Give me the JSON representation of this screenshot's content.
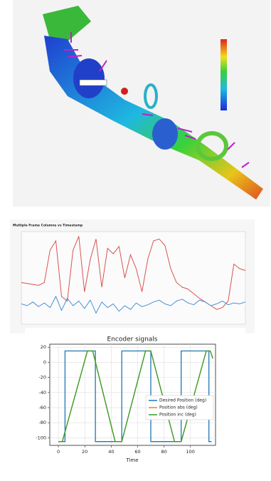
{
  "chart_data": [
    {
      "type": "line",
      "title": "Multiple Frame Columns vs Timestamp",
      "ylim": [
        0,
        100
      ],
      "series": [
        {
          "color": "#d9534f",
          "values": [
            45,
            44,
            43,
            42,
            45,
            80,
            90,
            30,
            25,
            80,
            95,
            35,
            70,
            92,
            40,
            82,
            76,
            84,
            50,
            75,
            60,
            35,
            70,
            90,
            92,
            85,
            60,
            45,
            40,
            38,
            33,
            28,
            24,
            20,
            16,
            18,
            25,
            65,
            60,
            58
          ]
        },
        {
          "color": "#4a90d9",
          "values": [
            22,
            20,
            24,
            19,
            23,
            18,
            30,
            15,
            28,
            20,
            25,
            17,
            26,
            12,
            24,
            18,
            22,
            14,
            20,
            16,
            23,
            19,
            21,
            24,
            26,
            22,
            20,
            25,
            27,
            23,
            21,
            26,
            24,
            20,
            22,
            25,
            21,
            23,
            22,
            24
          ]
        }
      ]
    },
    {
      "type": "line",
      "title": "Encoder signals",
      "xlabel": "Time",
      "xlim": [
        -6.5,
        119
      ],
      "ylim": [
        -110,
        24
      ],
      "xticks": [
        0,
        20,
        40,
        60,
        80,
        100
      ],
      "yticks": [
        20,
        0,
        -20,
        -40,
        -60,
        -80,
        -100
      ],
      "grid": true,
      "series": [
        {
          "name": "Desired Position (deg)",
          "color": "#1f77b4",
          "x": [
            0,
            5,
            5,
            28,
            28,
            48,
            48,
            70,
            70,
            93,
            93,
            114,
            114,
            116
          ],
          "values": [
            -105,
            -105,
            15,
            15,
            -105,
            -105,
            15,
            15,
            -105,
            -105,
            15,
            15,
            -105,
            -105
          ]
        },
        {
          "name": "Position abs (deg)",
          "color": "#ff7f0e",
          "x": [
            0,
            3,
            22,
            26,
            43,
            48,
            66,
            70,
            88,
            93,
            112,
            115,
            117
          ],
          "values": [
            -105,
            -105,
            15,
            15,
            -105,
            -105,
            15,
            15,
            -105,
            -105,
            15,
            15,
            5
          ]
        },
        {
          "name": "Position inc (deg)",
          "color": "#2ca02c",
          "x": [
            0,
            3,
            22,
            26,
            43,
            48,
            66,
            70,
            88,
            93,
            112,
            115,
            117
          ],
          "values": [
            -105,
            -105,
            15,
            15,
            -105,
            -105,
            15,
            15,
            -105,
            -105,
            15,
            15,
            5
          ]
        }
      ]
    }
  ]
}
